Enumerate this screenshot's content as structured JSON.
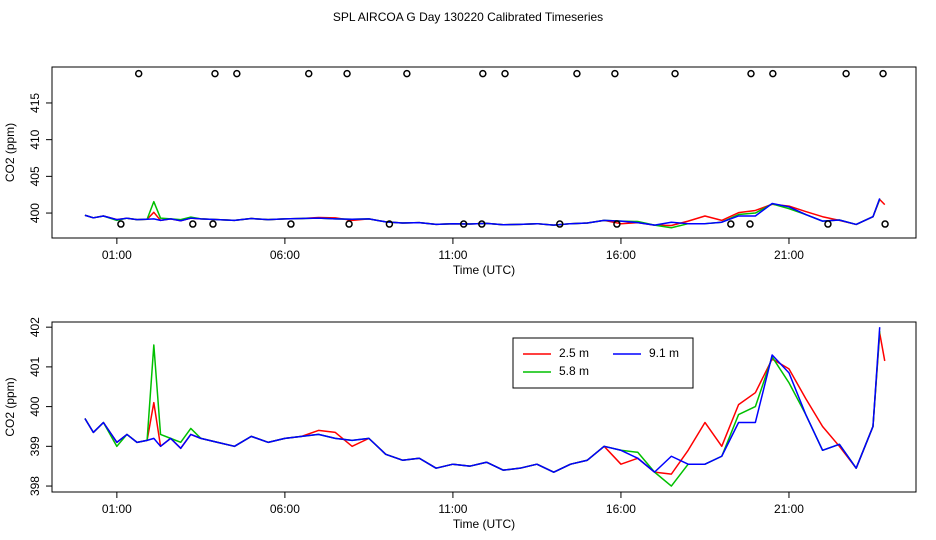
{
  "title": "SPL AIRCOA G  Day 130220  Calibrated Timeseries",
  "chart_data": [
    {
      "type": "line",
      "xlabel": "Time (UTC)",
      "ylabel": "CO2 (ppm)",
      "xlim": [
        -0.93,
        24.78
      ],
      "ylim": [
        396.6,
        419.9
      ],
      "xticks": [
        {
          "value": 1,
          "label": "01:00"
        },
        {
          "value": 6,
          "label": "06:00"
        },
        {
          "value": 11,
          "label": "11:00"
        },
        {
          "value": 16,
          "label": "16:00"
        },
        {
          "value": 21,
          "label": "21:00"
        }
      ],
      "yticks": [
        400,
        405,
        410,
        415
      ],
      "x": [
        0.05,
        0.3,
        0.6,
        1.0,
        1.3,
        1.6,
        1.9,
        2.1,
        2.3,
        2.6,
        2.9,
        3.2,
        3.5,
        4.0,
        4.5,
        5.0,
        5.5,
        6.0,
        6.5,
        7.0,
        7.5,
        8.0,
        8.5,
        9.0,
        9.5,
        10.0,
        10.5,
        11.0,
        11.5,
        12.0,
        12.5,
        13.0,
        13.5,
        14.0,
        14.5,
        15.0,
        15.5,
        16.0,
        16.5,
        17.0,
        17.5,
        18.0,
        18.5,
        19.0,
        19.5,
        20.0,
        20.5,
        21.0,
        21.5,
        22.0,
        22.5,
        23.0,
        23.5,
        23.7,
        23.85
      ],
      "series": [
        {
          "color": "#ff0000",
          "values": [
            399.7,
            399.35,
            399.6,
            399.1,
            399.3,
            399.1,
            399.15,
            400.1,
            399.0,
            399.2,
            398.95,
            399.3,
            399.2,
            399.1,
            399.0,
            399.25,
            399.1,
            399.2,
            399.25,
            399.4,
            399.35,
            399.0,
            399.2,
            398.8,
            398.65,
            398.7,
            398.45,
            398.55,
            398.5,
            398.6,
            398.4,
            398.45,
            398.55,
            398.35,
            398.55,
            398.65,
            399.0,
            398.55,
            398.7,
            398.35,
            398.3,
            398.9,
            399.6,
            399.0,
            400.05,
            400.35,
            401.2,
            400.95,
            400.2,
            399.5,
            399.0,
            398.45,
            399.5,
            401.85,
            401.15
          ]
        },
        {
          "color": "#00c000",
          "values": [
            399.7,
            399.35,
            399.6,
            399.0,
            399.3,
            399.1,
            399.15,
            401.55,
            399.3,
            399.2,
            399.1,
            399.45,
            399.2,
            399.1,
            399.0,
            399.25,
            399.1,
            399.2,
            399.25,
            399.3,
            399.2,
            399.15,
            399.2,
            398.8,
            398.65,
            398.7,
            398.45,
            398.55,
            398.5,
            398.6,
            398.4,
            398.45,
            398.55,
            398.35,
            398.55,
            398.65,
            399.0,
            398.9,
            398.85,
            398.35,
            398.0,
            398.55,
            398.55,
            398.75,
            399.8,
            400.0,
            401.25,
            400.6,
            399.8,
            398.9,
            399.05,
            398.45,
            399.5,
            401.9,
            null
          ]
        },
        {
          "color": "#0000ff",
          "values": [
            399.7,
            399.35,
            399.6,
            399.1,
            399.3,
            399.1,
            399.15,
            399.2,
            399.0,
            399.2,
            398.95,
            399.3,
            399.2,
            399.1,
            399.0,
            399.25,
            399.1,
            399.2,
            399.25,
            399.3,
            399.2,
            399.15,
            399.2,
            398.8,
            398.65,
            398.7,
            398.45,
            398.55,
            398.5,
            398.6,
            398.4,
            398.45,
            398.55,
            398.35,
            398.55,
            398.65,
            399.0,
            398.9,
            398.7,
            398.35,
            398.75,
            398.55,
            398.55,
            398.75,
            399.6,
            399.6,
            401.3,
            400.85,
            399.8,
            398.9,
            399.05,
            398.45,
            399.5,
            402.0,
            null
          ]
        },
        {
          "type": "points",
          "color": "#000000",
          "x": [
            1.65,
            3.92,
            4.57,
            6.71,
            7.85,
            9.63,
            11.89,
            12.55,
            14.69,
            15.82,
            17.61,
            19.87,
            20.52,
            22.7,
            23.8,
            1.12,
            3.26,
            3.86,
            6.18,
            7.91,
            9.11,
            11.32,
            11.86,
            14.18,
            15.88,
            19.27,
            19.84,
            22.16,
            23.86
          ],
          "values": [
            419,
            419,
            419,
            419,
            419,
            419,
            419,
            419,
            419,
            419,
            419,
            419,
            419,
            419,
            419,
            398.5,
            398.5,
            398.5,
            398.5,
            398.5,
            398.5,
            398.5,
            398.5,
            398.5,
            398.5,
            398.5,
            398.5,
            398.5,
            398.5
          ]
        }
      ]
    },
    {
      "type": "line",
      "xlabel": "Time (UTC)",
      "ylabel": "CO2 (ppm)",
      "legend": "top",
      "xlim": [
        -0.93,
        24.78
      ],
      "ylim": [
        397.85,
        402.13
      ],
      "xticks": [
        {
          "value": 1,
          "label": "01:00"
        },
        {
          "value": 6,
          "label": "06:00"
        },
        {
          "value": 11,
          "label": "11:00"
        },
        {
          "value": 16,
          "label": "16:00"
        },
        {
          "value": 21,
          "label": "21:00"
        }
      ],
      "yticks": [
        398,
        399,
        400,
        401,
        402
      ],
      "x": [
        0.05,
        0.3,
        0.6,
        1.0,
        1.3,
        1.6,
        1.9,
        2.1,
        2.3,
        2.6,
        2.9,
        3.2,
        3.5,
        4.0,
        4.5,
        5.0,
        5.5,
        6.0,
        6.5,
        7.0,
        7.5,
        8.0,
        8.5,
        9.0,
        9.5,
        10.0,
        10.5,
        11.0,
        11.5,
        12.0,
        12.5,
        13.0,
        13.5,
        14.0,
        14.5,
        15.0,
        15.5,
        16.0,
        16.5,
        17.0,
        17.5,
        18.0,
        18.5,
        19.0,
        19.5,
        20.0,
        20.5,
        21.0,
        21.5,
        22.0,
        22.5,
        23.0,
        23.5,
        23.7,
        23.85
      ],
      "series": [
        {
          "name": "2.5 m",
          "color": "#ff0000",
          "values": [
            399.7,
            399.35,
            399.6,
            399.1,
            399.3,
            399.1,
            399.15,
            400.1,
            399.0,
            399.2,
            398.95,
            399.3,
            399.2,
            399.1,
            399.0,
            399.25,
            399.1,
            399.2,
            399.25,
            399.4,
            399.35,
            399.0,
            399.2,
            398.8,
            398.65,
            398.7,
            398.45,
            398.55,
            398.5,
            398.6,
            398.4,
            398.45,
            398.55,
            398.35,
            398.55,
            398.65,
            399.0,
            398.55,
            398.7,
            398.35,
            398.3,
            398.9,
            399.6,
            399.0,
            400.05,
            400.35,
            401.2,
            400.95,
            400.2,
            399.5,
            399.0,
            398.45,
            399.5,
            401.85,
            401.15
          ]
        },
        {
          "name": "5.8 m",
          "color": "#00c000",
          "values": [
            399.7,
            399.35,
            399.6,
            399.0,
            399.3,
            399.1,
            399.15,
            401.55,
            399.3,
            399.2,
            399.1,
            399.45,
            399.2,
            399.1,
            399.0,
            399.25,
            399.1,
            399.2,
            399.25,
            399.3,
            399.2,
            399.15,
            399.2,
            398.8,
            398.65,
            398.7,
            398.45,
            398.55,
            398.5,
            398.6,
            398.4,
            398.45,
            398.55,
            398.35,
            398.55,
            398.65,
            399.0,
            398.9,
            398.85,
            398.35,
            398.0,
            398.55,
            398.55,
            398.75,
            399.8,
            400.0,
            401.25,
            400.6,
            399.8,
            398.9,
            399.05,
            398.45,
            399.5,
            401.9,
            null
          ]
        },
        {
          "name": "9.1 m",
          "color": "#0000ff",
          "values": [
            399.7,
            399.35,
            399.6,
            399.1,
            399.3,
            399.1,
            399.15,
            399.2,
            399.0,
            399.2,
            398.95,
            399.3,
            399.2,
            399.1,
            399.0,
            399.25,
            399.1,
            399.2,
            399.25,
            399.3,
            399.2,
            399.15,
            399.2,
            398.8,
            398.65,
            398.7,
            398.45,
            398.55,
            398.5,
            398.6,
            398.4,
            398.45,
            398.55,
            398.35,
            398.55,
            398.65,
            399.0,
            398.9,
            398.7,
            398.35,
            398.75,
            398.55,
            398.55,
            398.75,
            399.6,
            399.6,
            401.3,
            400.85,
            399.8,
            398.9,
            399.05,
            398.45,
            399.5,
            402.0,
            null
          ]
        }
      ]
    }
  ]
}
